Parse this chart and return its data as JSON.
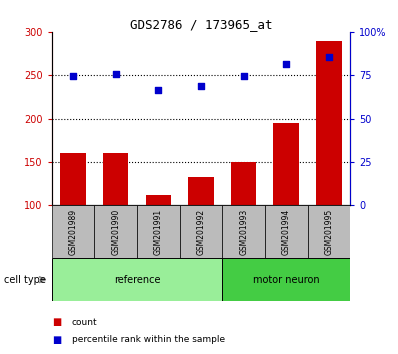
{
  "title": "GDS2786 / 173965_at",
  "categories": [
    "GSM201989",
    "GSM201990",
    "GSM201991",
    "GSM201992",
    "GSM201993",
    "GSM201994",
    "GSM201995"
  ],
  "bar_values": [
    160,
    160,
    112,
    133,
    150,
    195,
    290
  ],
  "scatter_values_left_scale": [
    249,
    251,
    233,
    238,
    249,
    263,
    271
  ],
  "bar_color": "#cc0000",
  "scatter_color": "#0000cc",
  "ylim_left": [
    100,
    300
  ],
  "ylim_right": [
    0,
    100
  ],
  "yticks_left": [
    100,
    150,
    200,
    250,
    300
  ],
  "ytick_labels_left": [
    "100",
    "150",
    "200",
    "250",
    "300"
  ],
  "yticks_right": [
    0,
    25,
    50,
    75,
    100
  ],
  "ytick_labels_right": [
    "0",
    "25",
    "50",
    "75",
    "100%"
  ],
  "grid_values": [
    150,
    200,
    250
  ],
  "ref_count": 4,
  "motor_count": 3,
  "reference_color": "#99ee99",
  "motor_neuron_color": "#44cc44",
  "cell_type_label": "cell type",
  "group_label_reference": "reference",
  "group_label_motor": "motor neuron",
  "legend_count": "count",
  "legend_percentile": "percentile rank within the sample",
  "tick_bg_color": "#bbbbbb",
  "left_axis_color": "#cc0000",
  "right_axis_color": "#0000cc",
  "bar_width": 0.6
}
